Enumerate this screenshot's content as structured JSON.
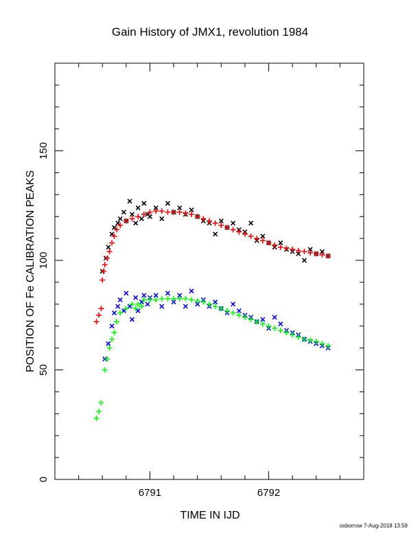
{
  "chart_data": {
    "type": "scatter",
    "title": "Gain History of JMX1, revolution 1984",
    "xlabel": "TIME IN IJD",
    "ylabel": "POSITION OF Fe CALIBRATION PEAKS",
    "xlim": [
      6790.2,
      6792.8
    ],
    "ylim": [
      0,
      190
    ],
    "x_ticks": [
      6791,
      6792
    ],
    "x_tick_labels": [
      "6791",
      "6792"
    ],
    "y_ticks": [
      0,
      50,
      100,
      150
    ],
    "y_tick_labels": [
      "0",
      "50",
      "100",
      "150"
    ],
    "grid": false,
    "legend": "none",
    "credit": "oxborrow  7-Aug-2018 13:59",
    "colors": {
      "upper_raw": "#000000",
      "upper_smooth": "#ff0000",
      "lower_raw": "#0000ff",
      "lower_smooth": "#00ff00"
    },
    "series": [
      {
        "marker": "x",
        "color": "#000000",
        "x": [
          6790.6,
          6790.63,
          6790.65,
          6790.68,
          6790.7,
          6790.73,
          6790.75,
          6790.78,
          6790.8,
          6790.83,
          6790.85,
          6790.88,
          6790.9,
          6790.93,
          6790.95,
          6790.98,
          6791.0,
          6791.05,
          6791.1,
          6791.15,
          6791.2,
          6791.25,
          6791.3,
          6791.35,
          6791.4,
          6791.45,
          6791.5,
          6791.55,
          6791.6,
          6791.65,
          6791.7,
          6791.75,
          6791.8,
          6791.85,
          6791.9,
          6791.95,
          6792.0,
          6792.05,
          6792.1,
          6792.15,
          6792.2,
          6792.25,
          6792.3,
          6792.35,
          6792.4,
          6792.45,
          6792.5
        ],
        "y": [
          95,
          101,
          106,
          112,
          115,
          117,
          119,
          122,
          118,
          127,
          121,
          117,
          124,
          119,
          126,
          121,
          120,
          124,
          119,
          126,
          122,
          124,
          121,
          123,
          120,
          118,
          117,
          112,
          118,
          115,
          117,
          114,
          113,
          117,
          109,
          111,
          108,
          106,
          108,
          105,
          104,
          103,
          100,
          105,
          103,
          104,
          102
        ]
      },
      {
        "marker": "+",
        "color": "#ff0000",
        "x": [
          6790.55,
          6790.57,
          6790.59,
          6790.6,
          6790.61,
          6790.62,
          6790.64,
          6790.66,
          6790.68,
          6790.7,
          6790.72,
          6790.75,
          6790.8,
          6790.85,
          6790.9,
          6790.95,
          6791.0,
          6791.05,
          6791.1,
          6791.15,
          6791.2,
          6791.25,
          6791.3,
          6791.35,
          6791.4,
          6791.45,
          6791.5,
          6791.55,
          6791.6,
          6791.65,
          6791.7,
          6791.75,
          6791.8,
          6791.85,
          6791.9,
          6791.95,
          6792.0,
          6792.05,
          6792.1,
          6792.15,
          6792.2,
          6792.25,
          6792.3,
          6792.35,
          6792.4,
          6792.45,
          6792.5
        ],
        "y": [
          72,
          75,
          78,
          91,
          95,
          98,
          101,
          104,
          108,
          111,
          114,
          116,
          118,
          119,
          120,
          121,
          122,
          122.5,
          122.5,
          122,
          122,
          122,
          121.5,
          121,
          120,
          119,
          118,
          117,
          116,
          115,
          114,
          113,
          112,
          111,
          110,
          109,
          108,
          107,
          106,
          105.5,
          105,
          104.5,
          104,
          103.5,
          103,
          102.5,
          102
        ]
      },
      {
        "marker": "x",
        "color": "#0000ff",
        "x": [
          6790.62,
          6790.65,
          6790.68,
          6790.7,
          6790.73,
          6790.75,
          6790.78,
          6790.8,
          6790.83,
          6790.85,
          6790.88,
          6790.9,
          6790.93,
          6790.95,
          6790.98,
          6791.0,
          6791.05,
          6791.1,
          6791.15,
          6791.2,
          6791.25,
          6791.3,
          6791.35,
          6791.4,
          6791.45,
          6791.5,
          6791.55,
          6791.6,
          6791.65,
          6791.7,
          6791.75,
          6791.8,
          6791.85,
          6791.9,
          6791.95,
          6792.0,
          6792.05,
          6792.1,
          6792.15,
          6792.2,
          6792.25,
          6792.3,
          6792.35,
          6792.4,
          6792.45,
          6792.5
        ],
        "y": [
          55,
          62,
          70,
          76,
          79,
          82,
          77,
          85,
          79,
          73,
          83,
          77,
          81,
          84,
          80,
          83,
          84,
          79,
          85,
          81,
          84,
          79,
          86,
          80,
          82,
          79,
          81,
          78,
          76,
          80,
          77,
          75,
          74,
          72,
          73,
          69,
          74,
          71,
          68,
          67,
          66,
          64,
          63,
          62,
          61,
          60
        ]
      },
      {
        "marker": "+",
        "color": "#00ff00",
        "x": [
          6790.55,
          6790.57,
          6790.59,
          6790.62,
          6790.64,
          6790.66,
          6790.68,
          6790.7,
          6790.72,
          6790.75,
          6790.8,
          6790.85,
          6790.88,
          6790.9,
          6790.93,
          6790.95,
          6791.0,
          6791.05,
          6791.1,
          6791.15,
          6791.2,
          6791.25,
          6791.3,
          6791.35,
          6791.4,
          6791.45,
          6791.5,
          6791.55,
          6791.6,
          6791.65,
          6791.7,
          6791.75,
          6791.8,
          6791.85,
          6791.9,
          6791.95,
          6792.0,
          6792.05,
          6792.1,
          6792.15,
          6792.2,
          6792.25,
          6792.3,
          6792.35,
          6792.4,
          6792.45,
          6792.5
        ],
        "y": [
          28,
          31,
          35,
          50,
          55,
          60,
          64,
          67,
          72,
          76,
          78,
          80,
          78,
          80,
          79,
          82,
          82,
          82,
          82.5,
          82.5,
          82.5,
          82.5,
          82.5,
          82,
          81.5,
          81,
          80,
          79,
          78,
          77,
          76,
          75,
          74,
          73,
          72,
          71,
          70,
          69,
          68,
          67,
          66,
          65,
          64,
          63.5,
          63,
          62,
          61
        ]
      }
    ]
  }
}
